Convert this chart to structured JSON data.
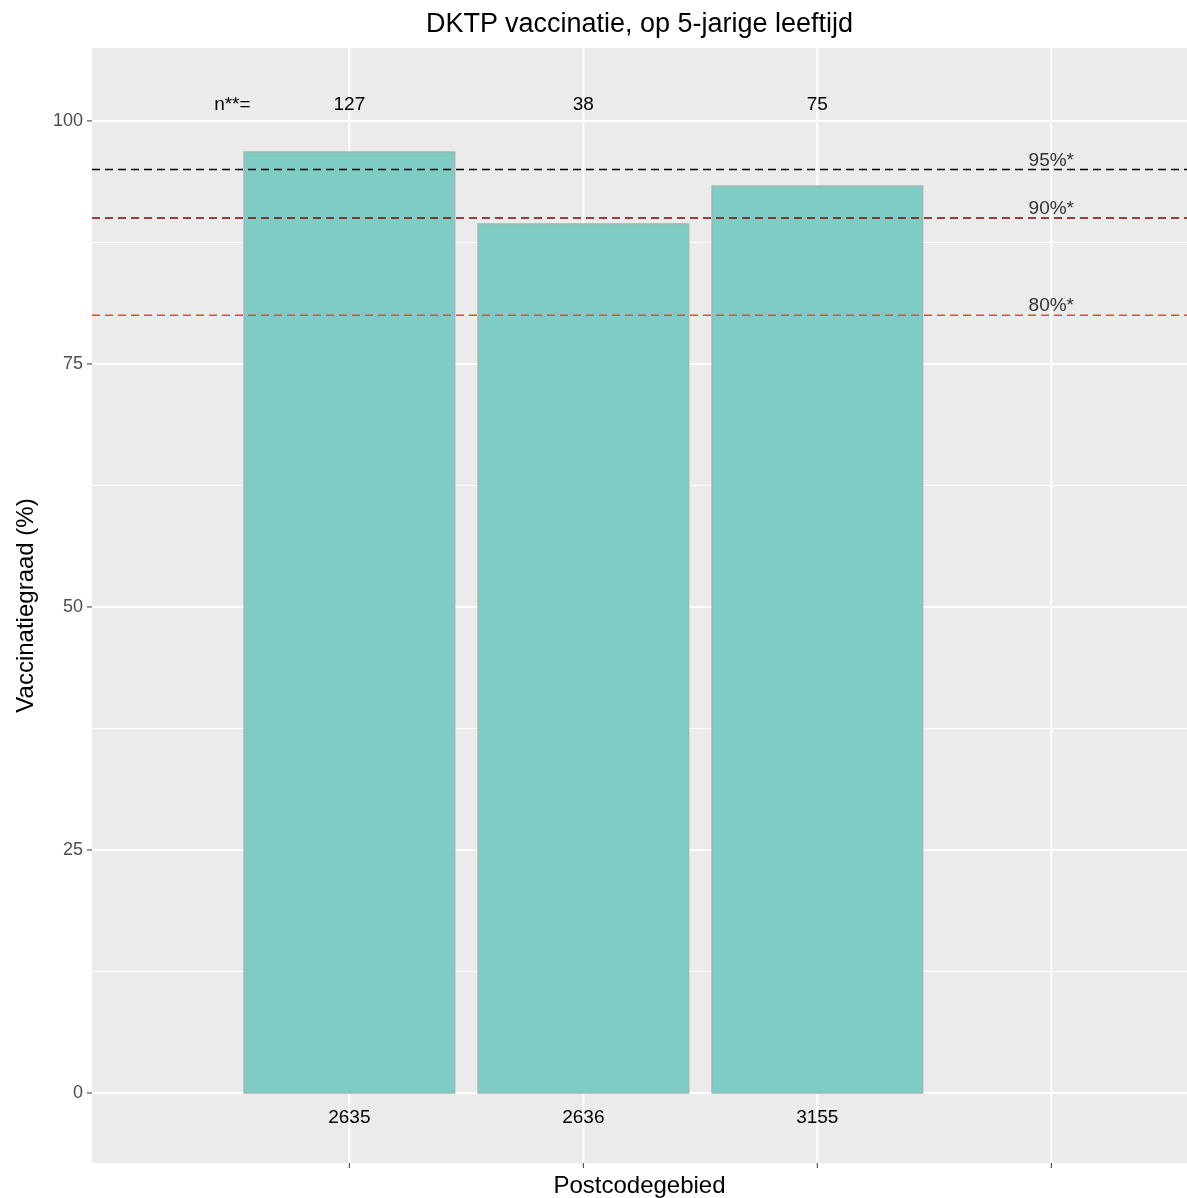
{
  "chart_data": {
    "type": "bar",
    "title": "DKTP vaccinatie, op 5-jarige leeftijd",
    "xlabel": "Postcodegebied",
    "ylabel": "Vaccinatiegraad (%)",
    "categories": [
      "2635",
      "2636",
      "3155",
      null
    ],
    "values": [
      96.8,
      89.4,
      93.3,
      null
    ],
    "color": "#7fccc4",
    "ylim": [
      -7.2,
      107.5
    ],
    "yticks": [
      0,
      25,
      50,
      75,
      100
    ],
    "grid": true,
    "ref_lines": [
      {
        "axis": "y",
        "value": 95,
        "label": "95%*",
        "color": "#000000",
        "line_style": "dashed"
      },
      {
        "axis": "y",
        "value": 90,
        "label": "90%*",
        "color": "#8b0000",
        "line_style": "dashed"
      },
      {
        "axis": "y",
        "value": 80,
        "label": "80%*",
        "color": "#e0501e",
        "line_style": "dashed"
      }
    ],
    "annotations": [
      "n**=",
      "127",
      "38",
      "75"
    ]
  }
}
